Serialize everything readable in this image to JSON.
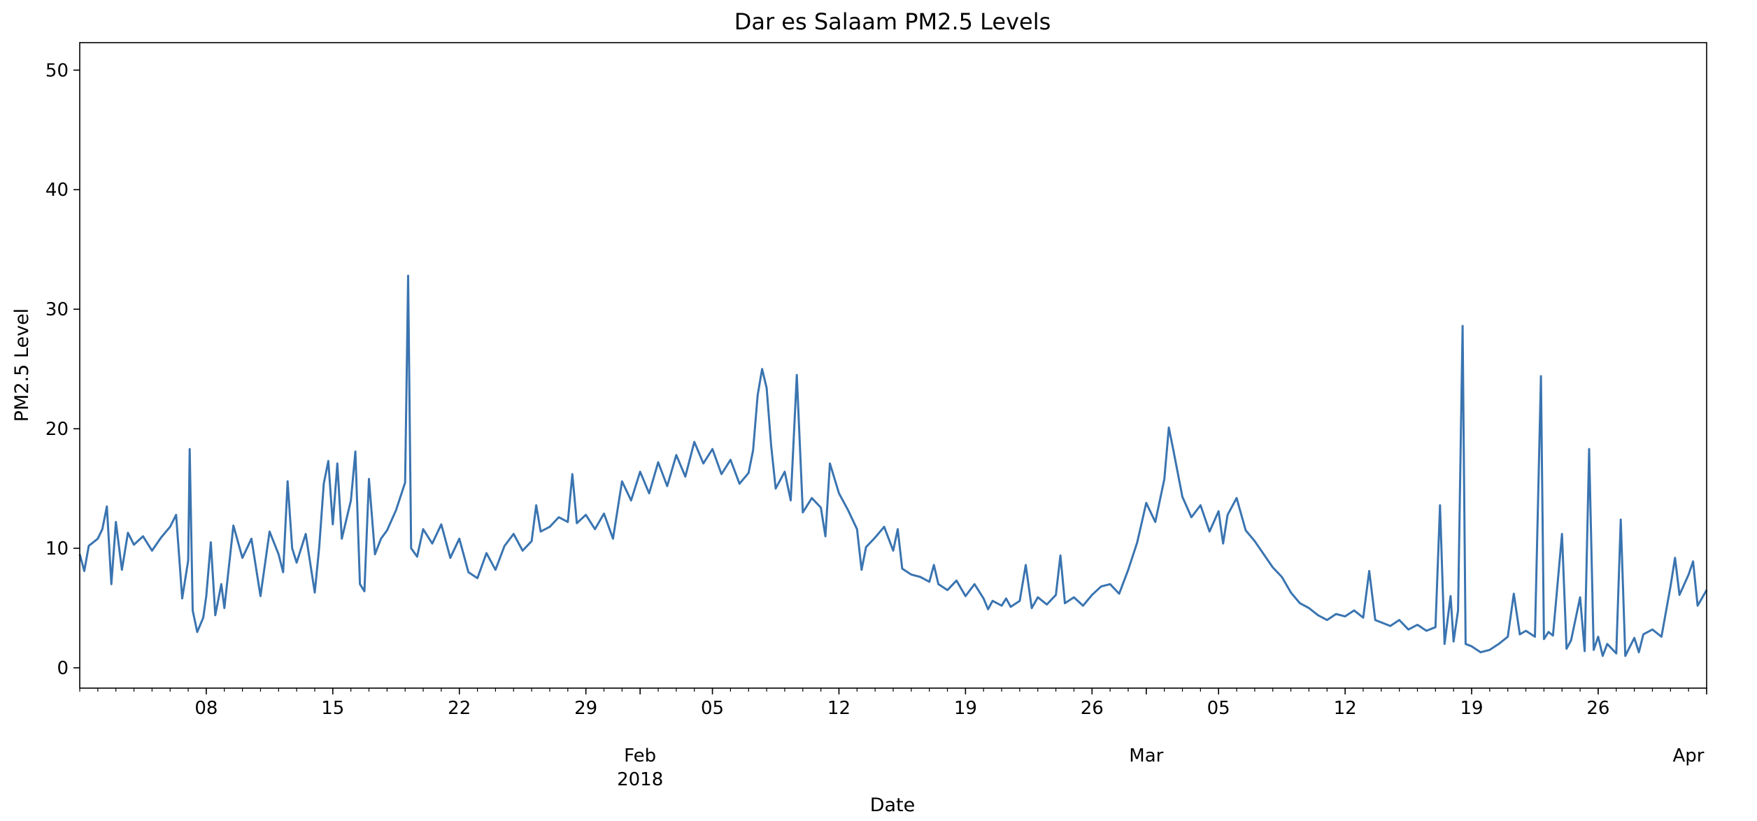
{
  "chart_data": {
    "type": "line",
    "title": "Dar es Salaam PM2.5 Levels",
    "xlabel": "Date",
    "ylabel": "PM2.5 Level",
    "x_range": [
      "2018-01-01",
      "2018-04-01"
    ],
    "ylim": [
      -1.7,
      52.3
    ],
    "grid": false,
    "y_ticks": [
      0,
      10,
      20,
      30,
      40,
      50
    ],
    "x_major_ticks": [
      {
        "date": "2018-01-08",
        "label": "08"
      },
      {
        "date": "2018-01-15",
        "label": "15"
      },
      {
        "date": "2018-01-22",
        "label": "22"
      },
      {
        "date": "2018-01-29",
        "label": "29"
      },
      {
        "date": "2018-02-05",
        "label": "05"
      },
      {
        "date": "2018-02-12",
        "label": "12"
      },
      {
        "date": "2018-02-19",
        "label": "19"
      },
      {
        "date": "2018-02-26",
        "label": "26"
      },
      {
        "date": "2018-03-05",
        "label": "05"
      },
      {
        "date": "2018-03-12",
        "label": "12"
      },
      {
        "date": "2018-03-19",
        "label": "19"
      },
      {
        "date": "2018-03-26",
        "label": "26"
      }
    ],
    "x_month_labels": [
      {
        "date": "2018-02-01",
        "label": "Feb",
        "sublabel": "2018"
      },
      {
        "date": "2018-03-01",
        "label": "Mar",
        "sublabel": ""
      },
      {
        "date": "2018-04-01",
        "label": "Apr",
        "sublabel": ""
      }
    ],
    "series": [
      {
        "color": "#3a74b0",
        "points": [
          [
            "2018-01-01",
            9.5
          ],
          [
            "2018-01-01T06",
            8.1
          ],
          [
            "2018-01-01T12",
            10.2
          ],
          [
            "2018-01-02",
            10.8
          ],
          [
            "2018-01-02T06",
            11.6
          ],
          [
            "2018-01-02T12",
            13.5
          ],
          [
            "2018-01-02T18",
            7.0
          ],
          [
            "2018-01-03",
            12.2
          ],
          [
            "2018-01-03T08",
            8.2
          ],
          [
            "2018-01-03T16",
            11.3
          ],
          [
            "2018-01-04",
            10.3
          ],
          [
            "2018-01-04T12",
            11.0
          ],
          [
            "2018-01-05",
            9.8
          ],
          [
            "2018-01-05T12",
            10.9
          ],
          [
            "2018-01-06",
            11.8
          ],
          [
            "2018-01-06T08",
            12.8
          ],
          [
            "2018-01-06T16",
            5.8
          ],
          [
            "2018-01-07",
            9.0
          ],
          [
            "2018-01-07T02",
            18.3
          ],
          [
            "2018-01-07T06",
            4.8
          ],
          [
            "2018-01-07T12",
            3.0
          ],
          [
            "2018-01-07T20",
            4.2
          ],
          [
            "2018-01-08",
            6.0
          ],
          [
            "2018-01-08T06",
            10.5
          ],
          [
            "2018-01-08T12",
            4.4
          ],
          [
            "2018-01-08T20",
            7.0
          ],
          [
            "2018-01-09",
            5.0
          ],
          [
            "2018-01-09T12",
            11.9
          ],
          [
            "2018-01-10",
            9.2
          ],
          [
            "2018-01-10T12",
            10.8
          ],
          [
            "2018-01-11",
            6.0
          ],
          [
            "2018-01-11T12",
            11.4
          ],
          [
            "2018-01-12",
            9.5
          ],
          [
            "2018-01-12T06",
            8.0
          ],
          [
            "2018-01-12T12",
            15.6
          ],
          [
            "2018-01-12T18",
            10.0
          ],
          [
            "2018-01-13",
            8.8
          ],
          [
            "2018-01-13T12",
            11.2
          ],
          [
            "2018-01-14",
            6.3
          ],
          [
            "2018-01-14T06",
            10.1
          ],
          [
            "2018-01-14T12",
            15.4
          ],
          [
            "2018-01-14T18",
            17.3
          ],
          [
            "2018-01-15",
            12.0
          ],
          [
            "2018-01-15T06",
            17.1
          ],
          [
            "2018-01-15T12",
            10.8
          ],
          [
            "2018-01-16",
            14.0
          ],
          [
            "2018-01-16T06",
            18.1
          ],
          [
            "2018-01-16T12",
            7.0
          ],
          [
            "2018-01-16T18",
            6.4
          ],
          [
            "2018-01-17",
            15.8
          ],
          [
            "2018-01-17T08",
            9.5
          ],
          [
            "2018-01-17T16",
            10.8
          ],
          [
            "2018-01-18",
            11.5
          ],
          [
            "2018-01-18T12",
            13.2
          ],
          [
            "2018-01-19",
            15.5
          ],
          [
            "2018-01-19T04",
            32.8
          ],
          [
            "2018-01-19T08",
            10.0
          ],
          [
            "2018-01-19T16",
            9.3
          ],
          [
            "2018-01-20",
            11.6
          ],
          [
            "2018-01-20T12",
            10.4
          ],
          [
            "2018-01-21",
            12.0
          ],
          [
            "2018-01-21T12",
            9.2
          ],
          [
            "2018-01-22",
            10.8
          ],
          [
            "2018-01-22T12",
            8.0
          ],
          [
            "2018-01-23",
            7.5
          ],
          [
            "2018-01-23T12",
            9.6
          ],
          [
            "2018-01-24",
            8.2
          ],
          [
            "2018-01-24T12",
            10.2
          ],
          [
            "2018-01-25",
            11.2
          ],
          [
            "2018-01-25T12",
            9.8
          ],
          [
            "2018-01-26",
            10.6
          ],
          [
            "2018-01-26T06",
            13.6
          ],
          [
            "2018-01-26T12",
            11.4
          ],
          [
            "2018-01-27",
            11.8
          ],
          [
            "2018-01-27T12",
            12.6
          ],
          [
            "2018-01-28",
            12.2
          ],
          [
            "2018-01-28T06",
            16.2
          ],
          [
            "2018-01-28T12",
            12.1
          ],
          [
            "2018-01-29",
            12.8
          ],
          [
            "2018-01-29T12",
            11.6
          ],
          [
            "2018-01-30",
            12.9
          ],
          [
            "2018-01-30T12",
            10.8
          ],
          [
            "2018-01-31",
            15.6
          ],
          [
            "2018-01-31T12",
            14.0
          ],
          [
            "2018-02-01",
            16.4
          ],
          [
            "2018-02-01T12",
            14.6
          ],
          [
            "2018-02-02",
            17.2
          ],
          [
            "2018-02-02T12",
            15.2
          ],
          [
            "2018-02-03",
            17.8
          ],
          [
            "2018-02-03T12",
            16.0
          ],
          [
            "2018-02-04",
            18.9
          ],
          [
            "2018-02-04T12",
            17.1
          ],
          [
            "2018-02-05",
            18.3
          ],
          [
            "2018-02-05T12",
            16.2
          ],
          [
            "2018-02-06",
            17.4
          ],
          [
            "2018-02-06T12",
            15.4
          ],
          [
            "2018-02-07",
            16.3
          ],
          [
            "2018-02-07T06",
            18.2
          ],
          [
            "2018-02-07T12",
            22.8
          ],
          [
            "2018-02-07T18",
            25.0
          ],
          [
            "2018-02-08",
            23.4
          ],
          [
            "2018-02-08T06",
            18.6
          ],
          [
            "2018-02-08T12",
            15.0
          ],
          [
            "2018-02-09",
            16.4
          ],
          [
            "2018-02-09T08",
            14.0
          ],
          [
            "2018-02-09T16",
            24.5
          ],
          [
            "2018-02-10",
            13.0
          ],
          [
            "2018-02-10T12",
            14.2
          ],
          [
            "2018-02-11",
            13.4
          ],
          [
            "2018-02-11T06",
            11.0
          ],
          [
            "2018-02-11T12",
            17.1
          ],
          [
            "2018-02-12",
            14.6
          ],
          [
            "2018-02-12T12",
            13.2
          ],
          [
            "2018-02-13",
            11.6
          ],
          [
            "2018-02-13T06",
            8.2
          ],
          [
            "2018-02-13T12",
            10.1
          ],
          [
            "2018-02-14",
            10.9
          ],
          [
            "2018-02-14T12",
            11.8
          ],
          [
            "2018-02-15",
            9.8
          ],
          [
            "2018-02-15T06",
            11.6
          ],
          [
            "2018-02-15T12",
            8.3
          ],
          [
            "2018-02-16",
            7.8
          ],
          [
            "2018-02-16T12",
            7.6
          ],
          [
            "2018-02-17",
            7.2
          ],
          [
            "2018-02-17T06",
            8.6
          ],
          [
            "2018-02-17T12",
            7.0
          ],
          [
            "2018-02-18",
            6.5
          ],
          [
            "2018-02-18T12",
            7.3
          ],
          [
            "2018-02-19",
            6.0
          ],
          [
            "2018-02-19T12",
            7.0
          ],
          [
            "2018-02-20",
            5.8
          ],
          [
            "2018-02-20T06",
            4.9
          ],
          [
            "2018-02-20T12",
            5.6
          ],
          [
            "2018-02-21",
            5.2
          ],
          [
            "2018-02-21T06",
            5.8
          ],
          [
            "2018-02-21T12",
            5.1
          ],
          [
            "2018-02-22",
            5.6
          ],
          [
            "2018-02-22T08",
            8.6
          ],
          [
            "2018-02-22T16",
            5.0
          ],
          [
            "2018-02-23",
            5.9
          ],
          [
            "2018-02-23T12",
            5.3
          ],
          [
            "2018-02-24",
            6.1
          ],
          [
            "2018-02-24T06",
            9.4
          ],
          [
            "2018-02-24T12",
            5.4
          ],
          [
            "2018-02-25",
            5.9
          ],
          [
            "2018-02-25T12",
            5.2
          ],
          [
            "2018-02-26",
            6.1
          ],
          [
            "2018-02-26T12",
            6.8
          ],
          [
            "2018-02-27",
            7.0
          ],
          [
            "2018-02-27T12",
            6.2
          ],
          [
            "2018-02-28",
            8.2
          ],
          [
            "2018-02-28T12",
            10.5
          ],
          [
            "2018-03-01",
            13.8
          ],
          [
            "2018-03-01T12",
            12.2
          ],
          [
            "2018-03-02",
            15.8
          ],
          [
            "2018-03-02T06",
            20.1
          ],
          [
            "2018-03-02T12",
            18.2
          ],
          [
            "2018-03-03",
            14.3
          ],
          [
            "2018-03-03T12",
            12.6
          ],
          [
            "2018-03-04",
            13.6
          ],
          [
            "2018-03-04T12",
            11.4
          ],
          [
            "2018-03-05",
            13.1
          ],
          [
            "2018-03-05T06",
            10.4
          ],
          [
            "2018-03-05T12",
            12.8
          ],
          [
            "2018-03-06",
            14.2
          ],
          [
            "2018-03-06T12",
            11.5
          ],
          [
            "2018-03-07",
            10.6
          ],
          [
            "2018-03-07T12",
            9.5
          ],
          [
            "2018-03-08",
            8.4
          ],
          [
            "2018-03-08T12",
            7.6
          ],
          [
            "2018-03-09",
            6.3
          ],
          [
            "2018-03-09T12",
            5.4
          ],
          [
            "2018-03-10",
            5.0
          ],
          [
            "2018-03-10T12",
            4.4
          ],
          [
            "2018-03-11",
            4.0
          ],
          [
            "2018-03-11T12",
            4.5
          ],
          [
            "2018-03-12",
            4.3
          ],
          [
            "2018-03-12T12",
            4.8
          ],
          [
            "2018-03-13",
            4.2
          ],
          [
            "2018-03-13T08",
            8.1
          ],
          [
            "2018-03-13T16",
            4.0
          ],
          [
            "2018-03-14",
            3.8
          ],
          [
            "2018-03-14T12",
            3.5
          ],
          [
            "2018-03-15",
            4.0
          ],
          [
            "2018-03-15T12",
            3.2
          ],
          [
            "2018-03-16",
            3.6
          ],
          [
            "2018-03-16T12",
            3.1
          ],
          [
            "2018-03-17",
            3.4
          ],
          [
            "2018-03-17T06",
            13.6
          ],
          [
            "2018-03-17T12",
            2.0
          ],
          [
            "2018-03-17T20",
            6.0
          ],
          [
            "2018-03-18",
            2.2
          ],
          [
            "2018-03-18T06",
            4.8
          ],
          [
            "2018-03-18T12",
            28.6
          ],
          [
            "2018-03-18T16",
            2.0
          ],
          [
            "2018-03-19",
            1.8
          ],
          [
            "2018-03-19T12",
            1.3
          ],
          [
            "2018-03-20",
            1.5
          ],
          [
            "2018-03-20T12",
            2.0
          ],
          [
            "2018-03-21",
            2.6
          ],
          [
            "2018-03-21T08",
            6.2
          ],
          [
            "2018-03-21T16",
            2.8
          ],
          [
            "2018-03-22",
            3.1
          ],
          [
            "2018-03-22T12",
            2.6
          ],
          [
            "2018-03-22T20",
            24.4
          ],
          [
            "2018-03-23",
            2.4
          ],
          [
            "2018-03-23T06",
            3.0
          ],
          [
            "2018-03-23T12",
            2.7
          ],
          [
            "2018-03-24",
            11.2
          ],
          [
            "2018-03-24T06",
            1.6
          ],
          [
            "2018-03-24T12",
            2.3
          ],
          [
            "2018-03-25",
            5.9
          ],
          [
            "2018-03-25T06",
            1.4
          ],
          [
            "2018-03-25T12",
            18.3
          ],
          [
            "2018-03-25T18",
            1.5
          ],
          [
            "2018-03-26",
            2.6
          ],
          [
            "2018-03-26T06",
            1.0
          ],
          [
            "2018-03-26T12",
            2.0
          ],
          [
            "2018-03-27",
            1.2
          ],
          [
            "2018-03-27T06",
            12.4
          ],
          [
            "2018-03-27T12",
            1.0
          ],
          [
            "2018-03-28",
            2.5
          ],
          [
            "2018-03-28T06",
            1.3
          ],
          [
            "2018-03-28T12",
            2.8
          ],
          [
            "2018-03-29",
            3.2
          ],
          [
            "2018-03-29T12",
            2.6
          ],
          [
            "2018-03-30",
            6.8
          ],
          [
            "2018-03-30T06",
            9.2
          ],
          [
            "2018-03-30T12",
            6.1
          ],
          [
            "2018-03-31",
            7.8
          ],
          [
            "2018-03-31T06",
            8.9
          ],
          [
            "2018-03-31T12",
            5.2
          ],
          [
            "2018-04-01",
            6.5
          ]
        ]
      }
    ]
  }
}
